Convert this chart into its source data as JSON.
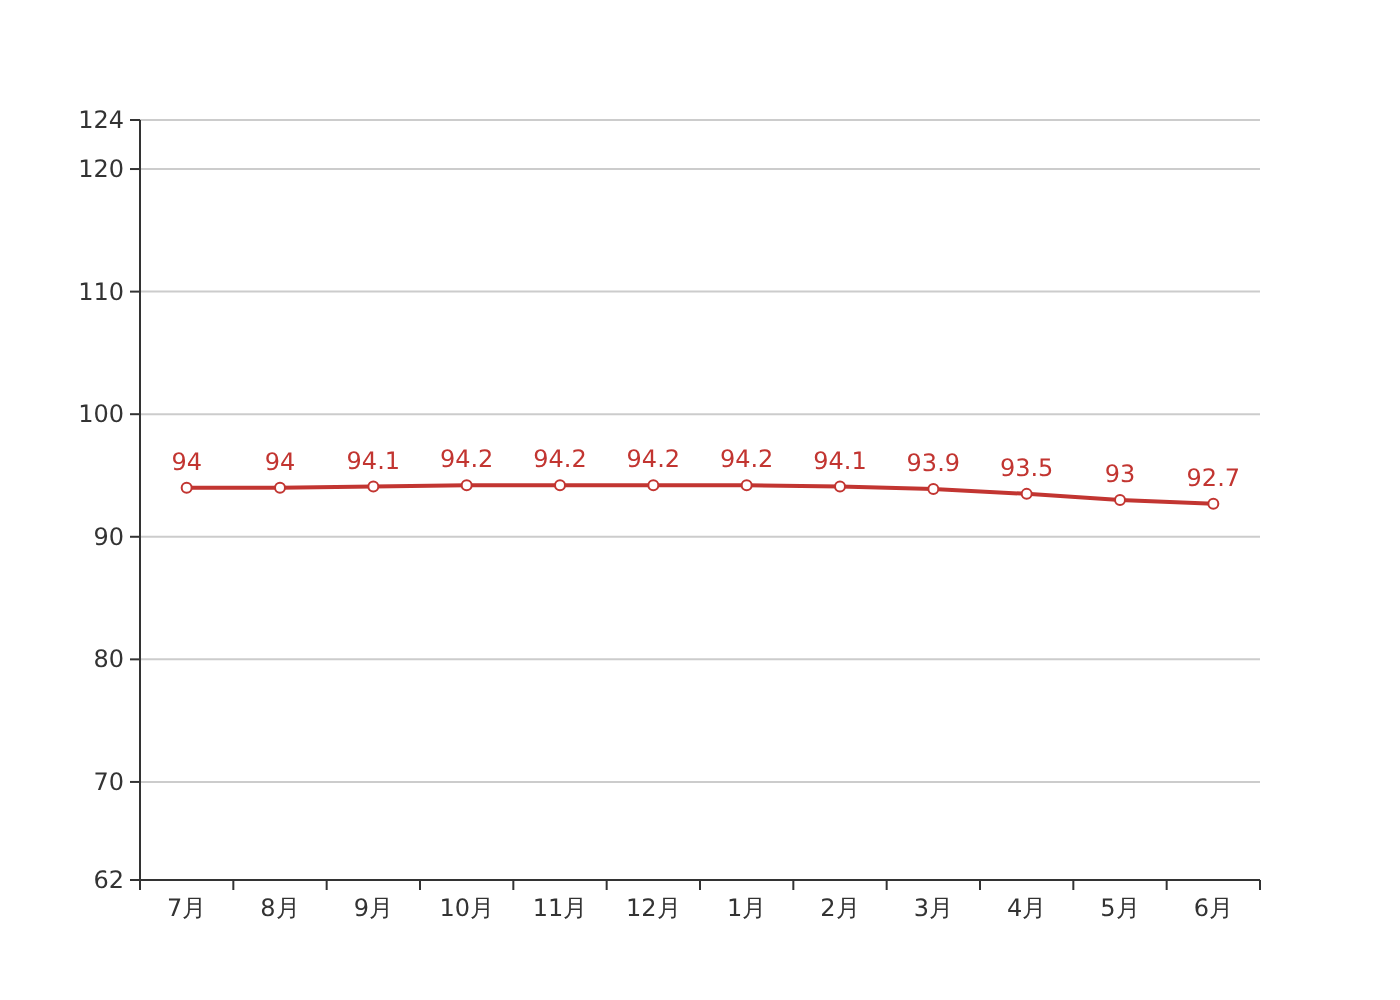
{
  "chart_data": {
    "type": "line",
    "categories": [
      "7月",
      "8月",
      "9月",
      "10月",
      "11月",
      "12月",
      "1月",
      "2月",
      "3月",
      "4月",
      "5月",
      "6月"
    ],
    "series": [
      {
        "color": "#c23531",
        "values": [
          94,
          94,
          94.1,
          94.2,
          94.2,
          94.2,
          94.2,
          94.1,
          93.9,
          93.5,
          93,
          92.7
        ]
      }
    ],
    "ylim": [
      62,
      124
    ],
    "yticks": [
      62,
      70,
      80,
      90,
      100,
      110,
      120,
      124
    ],
    "grid": "y",
    "marker": "circle",
    "data_labels": true,
    "line_style": "solid"
  }
}
